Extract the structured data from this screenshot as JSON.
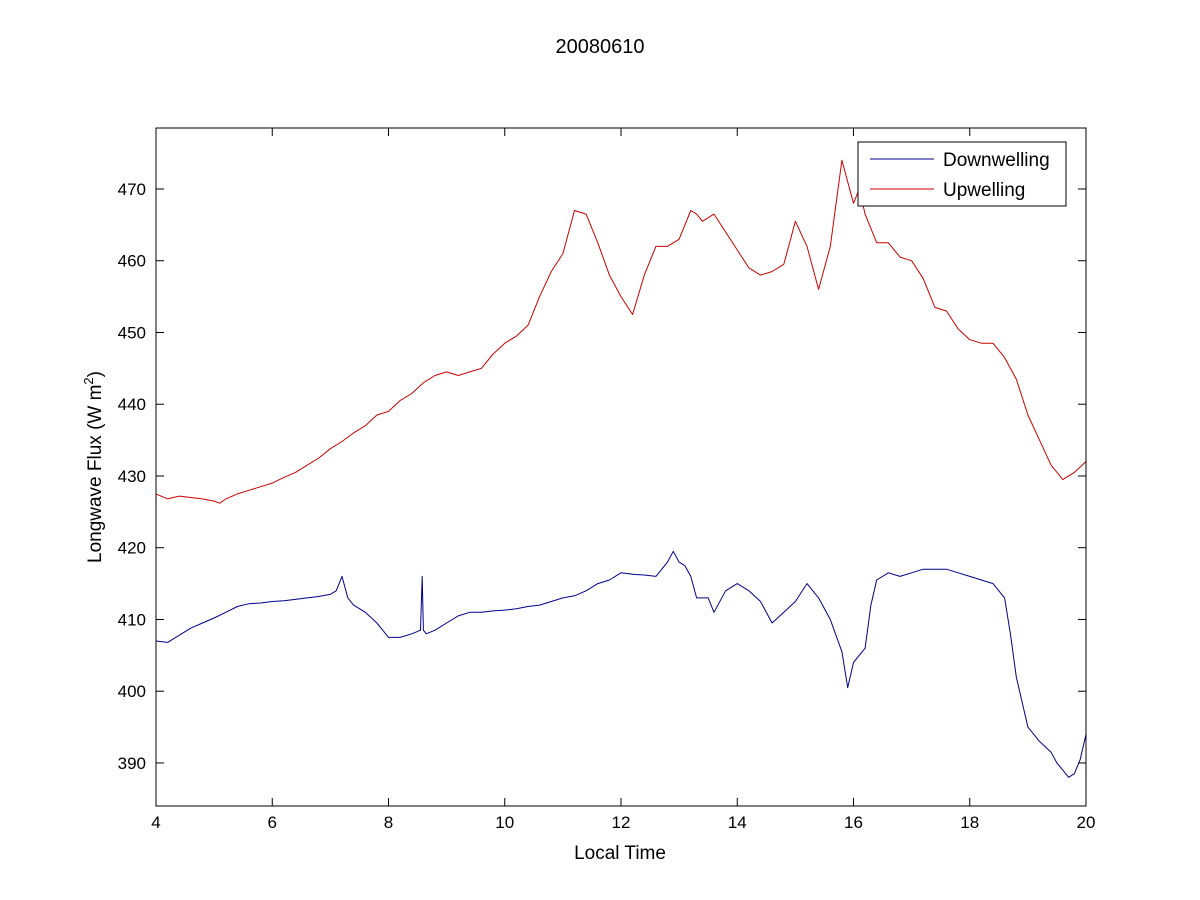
{
  "chart_data": {
    "type": "line",
    "title": "20080610",
    "xlabel": "Local Time",
    "ylabel": "Longwave Flux (W m",
    "ylabel_sup": "2",
    "ylabel_suffix": ")",
    "xlim": [
      4,
      20
    ],
    "ylim": [
      384,
      478.5
    ],
    "xticks": [
      4,
      6,
      8,
      10,
      12,
      14,
      16,
      18,
      20
    ],
    "yticks": [
      390,
      400,
      410,
      420,
      430,
      440,
      450,
      460,
      470
    ],
    "grid": false,
    "legend_position": "top-right",
    "series": [
      {
        "name": "Downwelling",
        "color": "#00008b",
        "x": [
          4.0,
          4.2,
          4.4,
          4.6,
          4.8,
          5.0,
          5.2,
          5.4,
          5.6,
          5.8,
          6.0,
          6.2,
          6.4,
          6.6,
          6.8,
          7.0,
          7.1,
          7.2,
          7.3,
          7.4,
          7.6,
          7.8,
          8.0,
          8.2,
          8.4,
          8.55,
          8.58,
          8.6,
          8.65,
          8.8,
          9.0,
          9.2,
          9.4,
          9.6,
          9.8,
          10.0,
          10.2,
          10.4,
          10.6,
          10.8,
          11.0,
          11.2,
          11.4,
          11.6,
          11.8,
          12.0,
          12.2,
          12.4,
          12.6,
          12.8,
          12.9,
          13.0,
          13.1,
          13.2,
          13.3,
          13.5,
          13.6,
          13.8,
          14.0,
          14.2,
          14.4,
          14.6,
          14.8,
          15.0,
          15.2,
          15.4,
          15.6,
          15.8,
          15.9,
          16.0,
          16.2,
          16.3,
          16.4,
          16.6,
          16.8,
          17.0,
          17.2,
          17.4,
          17.6,
          17.8,
          18.0,
          18.2,
          18.4,
          18.6,
          18.7,
          18.8,
          18.9,
          19.0,
          19.2,
          19.4,
          19.5,
          19.6,
          19.7,
          19.8,
          19.9,
          20.0
        ],
        "values": [
          407.0,
          406.8,
          407.8,
          408.8,
          409.5,
          410.2,
          411.0,
          411.8,
          412.2,
          412.3,
          412.5,
          412.6,
          412.8,
          413.0,
          413.2,
          413.5,
          414.0,
          416.0,
          413.0,
          412.0,
          411.0,
          409.5,
          407.5,
          407.5,
          408.0,
          408.5,
          416.0,
          408.5,
          408.0,
          408.5,
          409.5,
          410.5,
          411.0,
          411.0,
          411.2,
          411.3,
          411.5,
          411.8,
          412.0,
          412.5,
          413.0,
          413.3,
          414.0,
          415.0,
          415.5,
          416.5,
          416.3,
          416.2,
          416.0,
          418.0,
          419.5,
          418.0,
          417.5,
          416.0,
          413.0,
          413.0,
          411.0,
          414.0,
          415.0,
          414.0,
          412.5,
          409.5,
          411.0,
          412.5,
          415.0,
          413.0,
          410.0,
          405.5,
          400.5,
          404.0,
          406.0,
          412.0,
          415.5,
          416.5,
          416.0,
          416.5,
          417.0,
          417.0,
          417.0,
          416.5,
          416.0,
          415.5,
          415.0,
          413.0,
          408.0,
          402.0,
          398.5,
          395.0,
          393.0,
          391.5,
          390.0,
          389.0,
          388.0,
          388.5,
          390.5,
          394.0
        ]
      },
      {
        "name": "Upwelling",
        "color": "#cc0000",
        "x": [
          4.0,
          4.2,
          4.4,
          4.6,
          4.8,
          5.0,
          5.1,
          5.2,
          5.4,
          5.6,
          5.8,
          6.0,
          6.2,
          6.4,
          6.6,
          6.8,
          7.0,
          7.2,
          7.4,
          7.6,
          7.8,
          8.0,
          8.2,
          8.4,
          8.6,
          8.8,
          9.0,
          9.2,
          9.4,
          9.6,
          9.8,
          10.0,
          10.2,
          10.4,
          10.6,
          10.8,
          11.0,
          11.2,
          11.4,
          11.6,
          11.8,
          12.0,
          12.2,
          12.4,
          12.6,
          12.8,
          13.0,
          13.2,
          13.3,
          13.4,
          13.6,
          13.8,
          14.0,
          14.2,
          14.4,
          14.6,
          14.8,
          15.0,
          15.2,
          15.4,
          15.6,
          15.8,
          16.0,
          16.1,
          16.2,
          16.4,
          16.6,
          16.8,
          17.0,
          17.2,
          17.4,
          17.6,
          17.8,
          18.0,
          18.2,
          18.4,
          18.6,
          18.8,
          19.0,
          19.2,
          19.4,
          19.6,
          19.8,
          20.0
        ],
        "values": [
          427.5,
          426.8,
          427.2,
          427.0,
          426.8,
          426.5,
          426.2,
          426.8,
          427.5,
          428.0,
          428.5,
          429.0,
          429.8,
          430.5,
          431.5,
          432.5,
          433.8,
          434.8,
          436.0,
          437.0,
          438.5,
          439.0,
          440.5,
          441.5,
          443.0,
          444.0,
          444.5,
          444.0,
          444.5,
          445.0,
          447.0,
          448.5,
          449.5,
          451.0,
          455.0,
          458.5,
          461.0,
          467.0,
          466.5,
          462.5,
          458.0,
          455.0,
          452.5,
          458.0,
          462.0,
          462.0,
          463.0,
          467.0,
          466.5,
          465.5,
          466.5,
          464.0,
          461.5,
          459.0,
          458.0,
          458.5,
          459.5,
          465.5,
          462.0,
          456.0,
          462.0,
          474.0,
          468.0,
          470.0,
          466.5,
          462.5,
          462.5,
          460.5,
          460.0,
          457.5,
          453.5,
          453.0,
          450.5,
          449.0,
          448.5,
          448.5,
          446.5,
          443.5,
          438.5,
          435.0,
          431.5,
          429.5,
          430.5,
          432.0
        ]
      }
    ]
  }
}
